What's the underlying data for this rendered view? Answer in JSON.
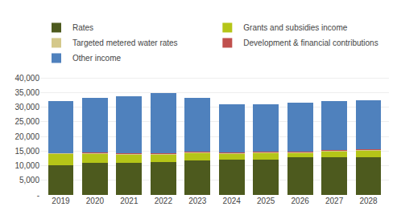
{
  "chart_data": {
    "type": "bar",
    "stacked": true,
    "categories": [
      "2019",
      "2020",
      "2021",
      "2022",
      "2023",
      "2024",
      "2025",
      "2026",
      "2027",
      "2028"
    ],
    "series": [
      {
        "name": "Rates",
        "color": "#4d5a1e",
        "values": [
          10200,
          11000,
          11100,
          11200,
          11800,
          12100,
          12200,
          12800,
          12900,
          13000
        ]
      },
      {
        "name": "Grants and subsidies income",
        "color": "#b5c518",
        "values": [
          3800,
          3200,
          2700,
          2700,
          2700,
          2000,
          2200,
          1700,
          2100,
          2200
        ]
      },
      {
        "name": "Targeted metered water rates",
        "color": "#d4c88a",
        "values": [
          300,
          300,
          300,
          300,
          300,
          300,
          300,
          300,
          300,
          300
        ]
      },
      {
        "name": "Development & financial contributions",
        "color": "#c0504d",
        "values": [
          100,
          100,
          100,
          100,
          100,
          100,
          100,
          100,
          100,
          100
        ]
      },
      {
        "name": "Other income",
        "color": "#4f81bd",
        "values": [
          17800,
          18600,
          19500,
          20700,
          18300,
          16600,
          16300,
          16700,
          16700,
          16700
        ]
      }
    ],
    "ylim": [
      0,
      42000
    ],
    "yticks": [
      {
        "value": 0,
        "label": "-"
      },
      {
        "value": 5000,
        "label": "5,000"
      },
      {
        "value": 10000,
        "label": "10,000"
      },
      {
        "value": 15000,
        "label": "15,000"
      },
      {
        "value": 20000,
        "label": "20,000"
      },
      {
        "value": 25000,
        "label": "25,000"
      },
      {
        "value": 30000,
        "label": "30,000"
      },
      {
        "value": 35000,
        "label": "35,000"
      },
      {
        "value": 40000,
        "label": "40,000"
      }
    ],
    "grid": true,
    "legend": "upper left"
  }
}
